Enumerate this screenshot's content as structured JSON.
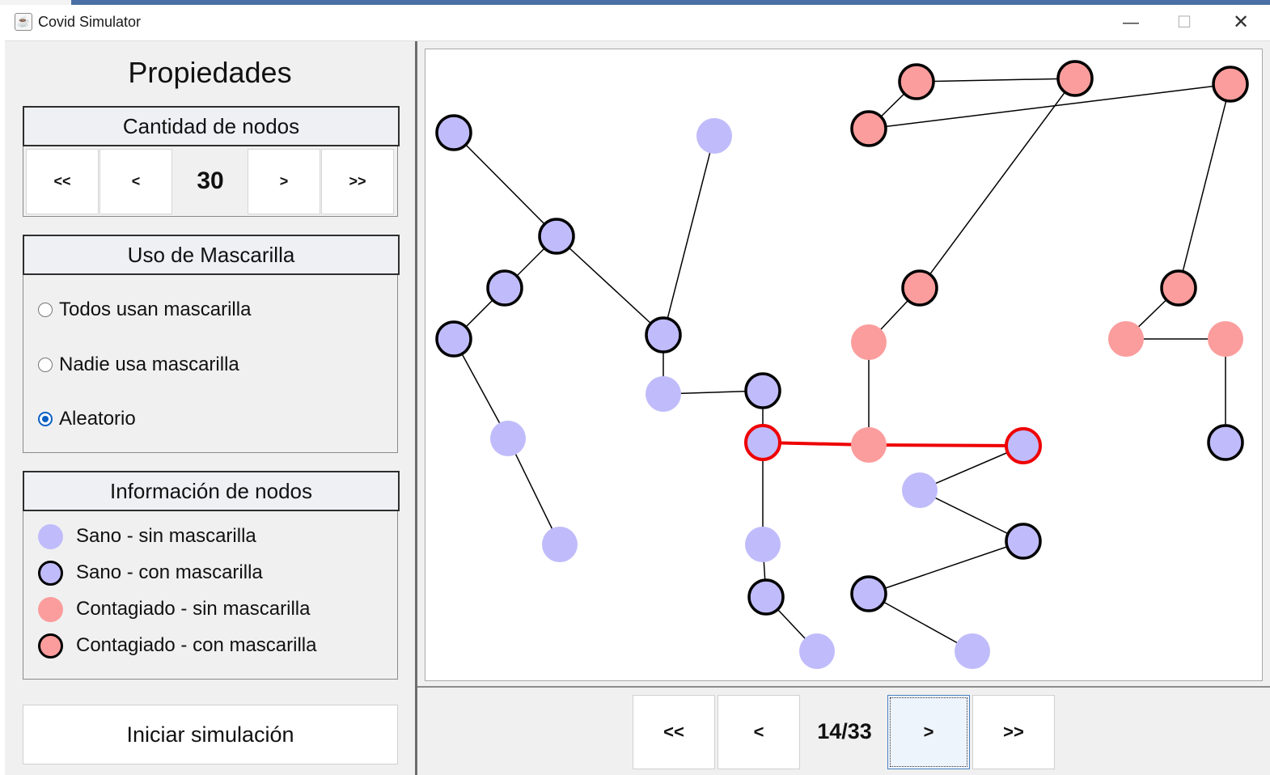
{
  "window": {
    "title": "Covid Simulator",
    "app_icon": "java-cup-icon",
    "minimize_glyph": "—",
    "maximize_glyph": "☐",
    "close_glyph": "✕"
  },
  "sidebar": {
    "title": "Propiedades",
    "node_count": {
      "header": "Cantidad de nodos",
      "first_label": "<<",
      "prev_label": "<",
      "value": "30",
      "next_label": ">",
      "last_label": ">>"
    },
    "mask_usage": {
      "header": "Uso de Mascarilla",
      "options": [
        {
          "label": "Todos usan mascarilla",
          "selected": false
        },
        {
          "label": "Nadie usa mascarilla",
          "selected": false
        },
        {
          "label": "Aleatorio",
          "selected": true
        }
      ]
    },
    "node_info": {
      "header": "Información de nodos",
      "legend": [
        {
          "label": "Sano - sin mascarilla",
          "fill": "#c0bcfb",
          "outlined": false
        },
        {
          "label": "Sano - con mascarilla",
          "fill": "#c0bcfb",
          "outlined": true
        },
        {
          "label": "Contagiado - sin mascarilla",
          "fill": "#fb9d9d",
          "outlined": false
        },
        {
          "label": "Contagiado - con mascarilla",
          "fill": "#fb9d9d",
          "outlined": true
        }
      ]
    },
    "start_button": "Iniciar simulación"
  },
  "colors": {
    "healthy": "#c0bcfb",
    "infected": "#fb9d9d",
    "outline": "#000000",
    "highlight": "#ee0000"
  },
  "graph": {
    "nodes": [
      {
        "id": "n1",
        "status": "healthy",
        "mask": true
      },
      {
        "id": "n2",
        "status": "healthy",
        "mask": false
      },
      {
        "id": "n3",
        "status": "healthy",
        "mask": true
      },
      {
        "id": "n4",
        "status": "healthy",
        "mask": true
      },
      {
        "id": "n5",
        "status": "healthy",
        "mask": true
      },
      {
        "id": "n6",
        "status": "healthy",
        "mask": false
      },
      {
        "id": "n7",
        "status": "healthy",
        "mask": false
      },
      {
        "id": "n8",
        "status": "healthy",
        "mask": true
      },
      {
        "id": "n9",
        "status": "healthy",
        "mask": false
      },
      {
        "id": "n10",
        "status": "healthy",
        "mask": true
      },
      {
        "id": "n11",
        "status": "healthy",
        "mask": true,
        "highlighted": true
      },
      {
        "id": "n12",
        "status": "healthy",
        "mask": false
      },
      {
        "id": "n13",
        "status": "healthy",
        "mask": true
      },
      {
        "id": "n14",
        "status": "healthy",
        "mask": false
      },
      {
        "id": "n15",
        "status": "infected",
        "mask": true
      },
      {
        "id": "n16",
        "status": "infected",
        "mask": true
      },
      {
        "id": "n17",
        "status": "infected",
        "mask": true
      },
      {
        "id": "n18",
        "status": "infected",
        "mask": true
      },
      {
        "id": "n19",
        "status": "infected",
        "mask": true
      },
      {
        "id": "n20",
        "status": "infected",
        "mask": false
      },
      {
        "id": "n21",
        "status": "infected",
        "mask": false
      },
      {
        "id": "n22",
        "status": "healthy",
        "mask": true,
        "highlighted": true
      },
      {
        "id": "n23",
        "status": "healthy",
        "mask": false
      },
      {
        "id": "n24",
        "status": "healthy",
        "mask": true
      },
      {
        "id": "n25",
        "status": "healthy",
        "mask": true
      },
      {
        "id": "n26",
        "status": "healthy",
        "mask": false
      },
      {
        "id": "n27",
        "status": "infected",
        "mask": true
      },
      {
        "id": "n28",
        "status": "infected",
        "mask": false
      },
      {
        "id": "n29",
        "status": "infected",
        "mask": false
      },
      {
        "id": "n30",
        "status": "healthy",
        "mask": true
      }
    ],
    "edges": [
      [
        "n1",
        "n3"
      ],
      [
        "n3",
        "n4"
      ],
      [
        "n4",
        "n5"
      ],
      [
        "n5",
        "n6"
      ],
      [
        "n6",
        "n7"
      ],
      [
        "n2",
        "n8"
      ],
      [
        "n3",
        "n8"
      ],
      [
        "n8",
        "n9"
      ],
      [
        "n9",
        "n10"
      ],
      [
        "n10",
        "n11"
      ],
      [
        "n11",
        "n12"
      ],
      [
        "n12",
        "n13"
      ],
      [
        "n13",
        "n14"
      ],
      [
        "n15",
        "n16"
      ],
      [
        "n15",
        "n17"
      ],
      [
        "n17",
        "n18"
      ],
      [
        "n16",
        "n19"
      ],
      [
        "n19",
        "n20"
      ],
      [
        "n20",
        "n21"
      ],
      [
        "n21",
        "n11",
        "infection"
      ],
      [
        "n21",
        "n22",
        "infection"
      ],
      [
        "n22",
        "n23"
      ],
      [
        "n23",
        "n24"
      ],
      [
        "n24",
        "n25"
      ],
      [
        "n25",
        "n26"
      ],
      [
        "n18",
        "n27"
      ],
      [
        "n27",
        "n28"
      ],
      [
        "n28",
        "n29"
      ],
      [
        "n29",
        "n30"
      ]
    ]
  },
  "simulation_nav": {
    "first_label": "<<",
    "prev_label": "<",
    "step": "14/33",
    "next_label": ">",
    "last_label": ">>"
  }
}
